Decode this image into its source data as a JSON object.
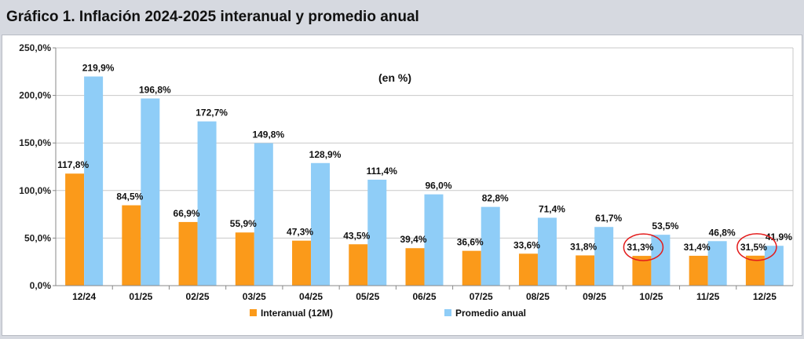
{
  "figure": {
    "title": "Gráfico 1. Inflación 2024-2025 interanual y promedio anual",
    "unit_note": "(en %)"
  },
  "colors": {
    "interanual": "#fb9a1a",
    "promedio": "#8fcdf7",
    "highlight_circle": "#e31a1a",
    "grid": "#c8c8c8"
  },
  "chart_data": {
    "type": "bar",
    "title": "Gráfico 1. Inflación 2024-2025 interanual y promedio anual",
    "subtitle": "(en %)",
    "xlabel": "",
    "ylabel": "",
    "ylim": [
      0,
      250
    ],
    "yticks": [
      0,
      50,
      100,
      150,
      200,
      250
    ],
    "ytick_labels": [
      "0,0%",
      "50,0%",
      "100,0%",
      "150,0%",
      "200,0%",
      "250,0%"
    ],
    "grid": true,
    "legend_position": "bottom-center",
    "categories": [
      "12/24",
      "01/25",
      "02/25",
      "03/25",
      "04/25",
      "05/25",
      "06/25",
      "07/25",
      "08/25",
      "09/25",
      "10/25",
      "11/25",
      "12/25"
    ],
    "series": [
      {
        "name": "Interanual (12M)",
        "values": [
          117.8,
          84.5,
          66.9,
          55.9,
          47.3,
          43.5,
          39.4,
          36.6,
          33.6,
          31.8,
          31.3,
          31.4,
          31.5
        ],
        "labels": [
          "117,8%",
          "84,5%",
          "66,9%",
          "55,9%",
          "47,3%",
          "43,5%",
          "39,4%",
          "36,6%",
          "33,6%",
          "31,8%",
          "31,3%",
          "31,4%",
          "31,5%"
        ]
      },
      {
        "name": "Promedio anual",
        "values": [
          219.9,
          196.8,
          172.7,
          149.8,
          128.9,
          111.4,
          96.0,
          82.8,
          71.4,
          61.7,
          53.5,
          46.8,
          41.9
        ],
        "labels": [
          "219,9%",
          "196,8%",
          "172,7%",
          "149,8%",
          "128,9%",
          "111,4%",
          "96,0%",
          "82,8%",
          "71,4%",
          "61,7%",
          "53,5%",
          "46,8%",
          "41,9%"
        ]
      }
    ],
    "highlighted_labels": [
      "10/25",
      "12/25"
    ]
  }
}
